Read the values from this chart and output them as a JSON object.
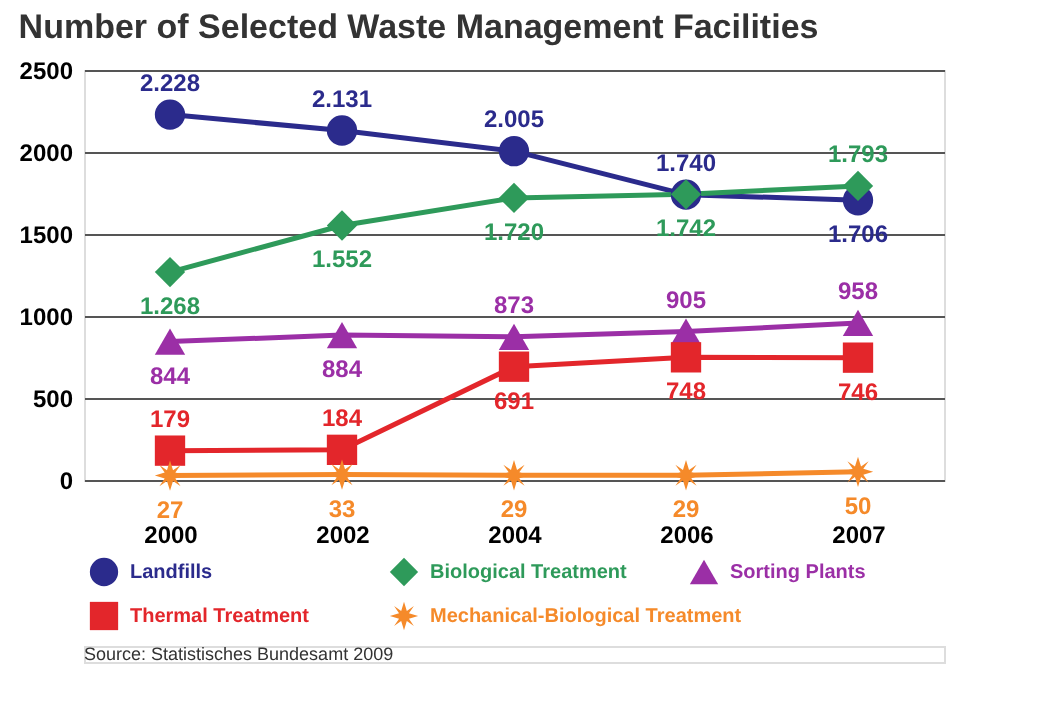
{
  "chart_data": {
    "type": "line",
    "title": "Number of Selected Waste Management Facilities",
    "categories": [
      "2000",
      "2002",
      "2004",
      "2006",
      "2007"
    ],
    "series": [
      {
        "name": "Landfills",
        "color": "#2b2b8c",
        "marker": "circle",
        "values": [
          2228,
          2131,
          2005,
          1740,
          1706
        ],
        "value_labels": [
          "2.228",
          "2.131",
          "2.005",
          "1.740",
          "1.706"
        ]
      },
      {
        "name": "Biological Treatment",
        "color": "#2e9a5a",
        "marker": "diamond",
        "values": [
          1268,
          1552,
          1720,
          1742,
          1793
        ],
        "value_labels": [
          "1.268",
          "1.552",
          "1.720",
          "1.742",
          "1.793"
        ]
      },
      {
        "name": "Sorting Plants",
        "color": "#9b2fa6",
        "marker": "triangle",
        "values": [
          844,
          884,
          873,
          905,
          958
        ],
        "value_labels": [
          "844",
          "884",
          "873",
          "905",
          "958"
        ]
      },
      {
        "name": "Thermal Treatment",
        "color": "#e3262b",
        "marker": "square",
        "values": [
          179,
          184,
          691,
          748,
          746
        ],
        "value_labels": [
          "179",
          "184",
          "691",
          "748",
          "746"
        ]
      },
      {
        "name": "Mechanical-Biological Treatment",
        "color": "#f58a2a",
        "marker": "star",
        "values": [
          27,
          33,
          29,
          29,
          50
        ],
        "value_labels": [
          "27",
          "33",
          "29",
          "29",
          "50"
        ]
      }
    ],
    "ylim": [
      0,
      2500
    ],
    "yticks": [
      0,
      500,
      1000,
      1500,
      2000,
      2500
    ],
    "grid": "y",
    "legend": "bottom",
    "annotations": [
      "Source: Statistisches Bundesamt 2009"
    ]
  }
}
